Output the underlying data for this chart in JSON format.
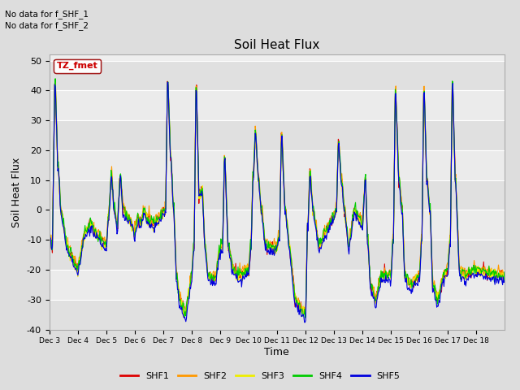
{
  "title": "Soil Heat Flux",
  "ylabel": "Soil Heat Flux",
  "xlabel": "Time",
  "ylim": [
    -40,
    52
  ],
  "annotation1": "No data for f_SHF_1",
  "annotation2": "No data for f_SHF_2",
  "legend_label": "TZ_fmet",
  "series_labels": [
    "SHF1",
    "SHF2",
    "SHF3",
    "SHF4",
    "SHF5"
  ],
  "series_colors": [
    "#dd0000",
    "#ff9900",
    "#eeee00",
    "#00cc00",
    "#0000dd"
  ],
  "background_color": "#dddddd",
  "plot_bg_color": "#eeeeee",
  "grid_color": "#ffffff",
  "yticks": [
    -40,
    -30,
    -20,
    -10,
    0,
    10,
    20,
    30,
    40,
    50
  ],
  "xtick_labels": [
    "Dec 3",
    "Dec 4",
    "Dec 5",
    "Dec 6",
    "Dec 7",
    "Dec 8",
    "Dec 9",
    "Dec 10",
    "Dec 11",
    "Dec 12",
    "Dec 13",
    "Dec 14",
    "Dec 15",
    "Dec 16",
    "Dec 17",
    "Dec 18"
  ],
  "num_days": 16
}
